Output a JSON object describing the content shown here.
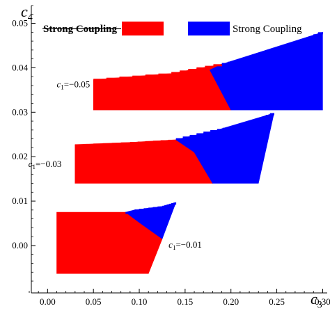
{
  "chart_data": {
    "type": "area",
    "xlabel": "c3",
    "ylabel": "c4",
    "xlabel_main": "c",
    "xlabel_sub": "3",
    "ylabel_main": "c",
    "ylabel_sub": "4",
    "xlim": [
      -0.02,
      0.305
    ],
    "ylim": [
      -0.0105,
      0.054
    ],
    "x_ticks": [
      0.0,
      0.05,
      0.1,
      0.15,
      0.2,
      0.25,
      0.3
    ],
    "x_tick_labels": [
      "0.00",
      "0.05",
      "0.10",
      "0.15",
      "0.20",
      "0.25",
      "0.30"
    ],
    "y_ticks": [
      0.0,
      0.01,
      0.02,
      0.03,
      0.04,
      0.05
    ],
    "y_tick_labels": [
      "0.00",
      "0.01",
      "0.02",
      "0.03",
      "0.04",
      "0.05"
    ],
    "grid": false,
    "legend_position": "top",
    "legend": [
      {
        "label": "Strong Coupling",
        "strikethrough": true,
        "color": "#ff0000"
      },
      {
        "label": "Strong Coupling",
        "strikethrough": false,
        "color": "#0000ff"
      }
    ],
    "colors": {
      "red": "#ff0000",
      "blue": "#0000ff"
    },
    "series": [
      {
        "annotation": "c₁=−0.05",
        "annotation_main": "c",
        "annotation_sub": "1",
        "annotation_value": "=−0.05",
        "annotation_anchor": [
          0.01,
          0.0356
        ],
        "red_polygon": [
          [
            0.05,
            0.0305
          ],
          [
            0.05,
            0.0373
          ],
          [
            0.135,
            0.0387
          ],
          [
            0.19,
            0.0408
          ],
          [
            0.177,
            0.0395
          ],
          [
            0.2,
            0.0305
          ]
        ],
        "blue_polygon": [
          [
            0.19,
            0.0408
          ],
          [
            0.3,
            0.048
          ],
          [
            0.3,
            0.0305
          ],
          [
            0.2,
            0.0305
          ],
          [
            0.177,
            0.0395
          ]
        ],
        "top_edge": [
          [
            0.05,
            0.0373
          ],
          [
            0.135,
            0.0387
          ],
          [
            0.19,
            0.0408
          ],
          [
            0.23,
            0.0425
          ],
          [
            0.27,
            0.0453
          ],
          [
            0.3,
            0.048
          ]
        ]
      },
      {
        "annotation": "c₁=−0.03",
        "annotation_main": "c",
        "annotation_sub": "1",
        "annotation_value": "=−0.03",
        "annotation_anchor": [
          -0.021,
          0.0177
        ],
        "red_polygon": [
          [
            0.03,
            0.014
          ],
          [
            0.03,
            0.0227
          ],
          [
            0.09,
            0.0232
          ],
          [
            0.14,
            0.0238
          ],
          [
            0.16,
            0.021
          ],
          [
            0.18,
            0.014
          ]
        ],
        "blue_polygon": [
          [
            0.14,
            0.0238
          ],
          [
            0.185,
            0.026
          ],
          [
            0.247,
            0.0298
          ],
          [
            0.23,
            0.014
          ],
          [
            0.18,
            0.014
          ],
          [
            0.16,
            0.021
          ]
        ],
        "top_edge": [
          [
            0.03,
            0.0227
          ],
          [
            0.09,
            0.0232
          ],
          [
            0.14,
            0.0238
          ],
          [
            0.185,
            0.026
          ],
          [
            0.22,
            0.0275
          ],
          [
            0.247,
            0.0298
          ]
        ]
      },
      {
        "annotation": "c₁=−0.01",
        "annotation_main": "c",
        "annotation_sub": "1",
        "annotation_value": "=−0.01",
        "annotation_anchor": [
          0.132,
          -0.0005
        ],
        "red_polygon": [
          [
            0.01,
            -0.0063
          ],
          [
            0.01,
            0.0075
          ],
          [
            0.085,
            0.0075
          ],
          [
            0.1,
            0.0052
          ],
          [
            0.125,
            0.0015
          ],
          [
            0.11,
            -0.0063
          ]
        ],
        "blue_polygon": [
          [
            0.085,
            0.0075
          ],
          [
            0.095,
            0.008
          ],
          [
            0.125,
            0.0088
          ],
          [
            0.14,
            0.0097
          ],
          [
            0.125,
            0.0015
          ],
          [
            0.1,
            0.0052
          ]
        ],
        "top_edge": [
          [
            0.01,
            0.0075
          ],
          [
            0.085,
            0.0075
          ],
          [
            0.095,
            0.008
          ],
          [
            0.125,
            0.0088
          ],
          [
            0.14,
            0.0097
          ]
        ]
      }
    ]
  }
}
